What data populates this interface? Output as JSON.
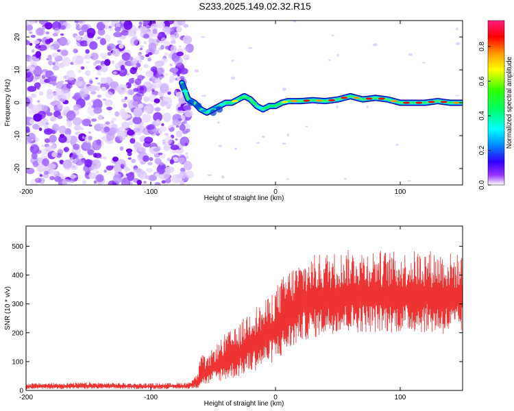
{
  "figure": {
    "title": "S233.2025.149.02.32.R15"
  },
  "chart_data": [
    {
      "type": "heatmap",
      "xlabel": "Height of straight line (km)",
      "ylabel": "Frequency (Hz)",
      "xlim": [
        -200,
        150
      ],
      "ylim": [
        -25,
        25
      ],
      "x_ticks": [
        -200,
        -100,
        0,
        100
      ],
      "y_ticks": [
        -20,
        -10,
        0,
        10,
        20
      ],
      "colorbar": {
        "label": "Normalized spectral amplitude",
        "range": [
          0,
          0.95
        ],
        "ticks": [
          0.0,
          0.2,
          0.4,
          0.6,
          0.8
        ],
        "tick_labels": [
          "0.0",
          "0.2",
          "0.4",
          "0.6",
          "0.8"
        ],
        "colormap": "rainbow"
      },
      "noise_region_x": [
        -200,
        -72
      ],
      "signal_line": {
        "x": [
          -75,
          -70,
          -65,
          -60,
          -55,
          -50,
          -45,
          -40,
          -35,
          -30,
          -25,
          -20,
          -15,
          -10,
          -5,
          0,
          5,
          10,
          20,
          30,
          40,
          50,
          60,
          70,
          80,
          90,
          100,
          110,
          120,
          130,
          140,
          150
        ],
        "freq_hz": [
          6,
          1,
          0,
          -2,
          -3,
          -2,
          -1,
          0,
          0,
          1,
          2,
          1,
          -1,
          -2,
          -1,
          -1,
          0,
          0.5,
          0.5,
          0.8,
          0.5,
          1,
          2,
          1,
          1.5,
          1,
          0,
          0,
          0,
          0.5,
          0,
          0
        ],
        "amplitude": [
          0.4,
          0.3,
          0.3,
          0.3,
          0.4,
          0.3,
          0.4,
          0.5,
          0.7,
          0.5,
          0.6,
          0.5,
          0.4,
          0.5,
          0.6,
          0.6,
          0.7,
          0.8,
          0.9,
          0.8,
          0.9,
          0.9,
          0.8,
          0.9,
          0.9,
          0.85,
          0.9,
          0.9,
          0.9,
          0.9,
          0.8,
          0.9
        ]
      }
    },
    {
      "type": "line",
      "xlabel": "Height of straight line (km)",
      "ylabel": "SNR (10 * v/v)",
      "xlim": [
        -200,
        150
      ],
      "ylim": [
        0,
        570
      ],
      "x_ticks": [
        -200,
        -100,
        0,
        100
      ],
      "y_ticks": [
        0,
        100,
        200,
        300,
        400,
        500
      ],
      "series_color": "#ee3333",
      "envelope": {
        "x": [
          -200,
          -150,
          -100,
          -70,
          -62,
          -60,
          -55,
          -50,
          -45,
          -40,
          -30,
          -20,
          -10,
          0,
          10,
          20,
          30,
          40,
          50,
          60,
          80,
          100,
          120,
          140,
          150
        ],
        "low": [
          5,
          5,
          5,
          5,
          8,
          15,
          20,
          25,
          30,
          35,
          45,
          60,
          80,
          100,
          130,
          170,
          180,
          190,
          200,
          200,
          200,
          200,
          200,
          190,
          200
        ],
        "high": [
          25,
          28,
          25,
          28,
          60,
          130,
          110,
          150,
          170,
          200,
          220,
          290,
          300,
          360,
          420,
          450,
          470,
          480,
          480,
          490,
          490,
          480,
          490,
          480,
          470
        ]
      }
    }
  ]
}
